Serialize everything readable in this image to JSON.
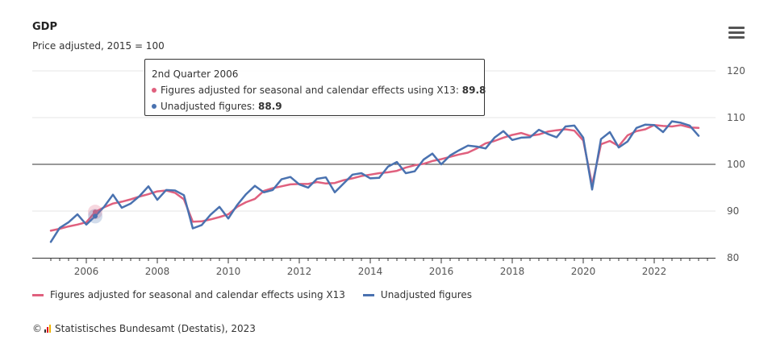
{
  "header": {
    "title": "GDP",
    "subtitle": "Price adjusted, 2015 = 100",
    "menu_icon": "hamburger-menu-icon"
  },
  "tooltip": {
    "heading": "2nd Quarter 2006",
    "adjusted_label": "Figures adjusted for seasonal and calendar effects using X13",
    "adjusted_value": "89.8",
    "unadjusted_label": "Unadjusted figures",
    "unadjusted_value": "88.9"
  },
  "legend": {
    "adjusted": "Figures adjusted for seasonal and calendar effects using X13",
    "unadjusted": "Unadjusted figures"
  },
  "credits": {
    "copyright": "©",
    "text": "Statistisches Bundesamt (Destatis), 2023",
    "logo_icon": "destatis-logo-icon"
  },
  "colors": {
    "adjusted": "#e0607e",
    "unadjusted": "#4a72b0",
    "grid": "#e6e6e6",
    "reference_line": "#333333"
  },
  "chart_data": {
    "type": "line",
    "title": "GDP",
    "subtitle": "Price adjusted, 2015 = 100",
    "y_axis_position": "right",
    "ylim": [
      80,
      120
    ],
    "yticks": [
      80,
      90,
      100,
      110,
      120
    ],
    "xlim": [
      2005.0,
      2023.75
    ],
    "xticks": [
      2006,
      2008,
      2010,
      2012,
      2014,
      2016,
      2018,
      2020,
      2022
    ],
    "reference_line": 100,
    "grid": true,
    "legend_position": "bottom",
    "highlight_x": 2006.25,
    "x": [
      2005.0,
      2005.25,
      2005.5,
      2005.75,
      2006.0,
      2006.25,
      2006.5,
      2006.75,
      2007.0,
      2007.25,
      2007.5,
      2007.75,
      2008.0,
      2008.25,
      2008.5,
      2008.75,
      2009.0,
      2009.25,
      2009.5,
      2009.75,
      2010.0,
      2010.25,
      2010.5,
      2010.75,
      2011.0,
      2011.25,
      2011.5,
      2011.75,
      2012.0,
      2012.25,
      2012.5,
      2012.75,
      2013.0,
      2013.25,
      2013.5,
      2013.75,
      2014.0,
      2014.25,
      2014.5,
      2014.75,
      2015.0,
      2015.25,
      2015.5,
      2015.75,
      2016.0,
      2016.25,
      2016.5,
      2016.75,
      2017.0,
      2017.25,
      2017.5,
      2017.75,
      2018.0,
      2018.25,
      2018.5,
      2018.75,
      2019.0,
      2019.25,
      2019.5,
      2019.75,
      2020.0,
      2020.25,
      2020.5,
      2020.75,
      2021.0,
      2021.25,
      2021.5,
      2021.75,
      2022.0,
      2022.25,
      2022.5,
      2022.75,
      2023.0,
      2023.25
    ],
    "series": [
      {
        "name": "Figures adjusted for seasonal and calendar effects using X13",
        "values": [
          85.8,
          86.2,
          86.7,
          87.1,
          87.6,
          89.8,
          90.8,
          91.6,
          92.0,
          92.5,
          93.1,
          93.6,
          94.2,
          94.4,
          93.9,
          92.5,
          87.7,
          87.8,
          88.2,
          88.7,
          89.3,
          90.9,
          91.9,
          92.6,
          94.3,
          94.9,
          95.3,
          95.7,
          95.8,
          95.8,
          96.2,
          95.9,
          96.0,
          96.6,
          97.0,
          97.5,
          97.8,
          98.1,
          98.3,
          98.6,
          99.3,
          99.8,
          100.1,
          100.7,
          101.1,
          101.6,
          102.1,
          102.5,
          103.4,
          104.5,
          105.0,
          105.7,
          106.3,
          106.7,
          106.1,
          106.4,
          107.0,
          107.3,
          107.5,
          107.2,
          105.1,
          95.6,
          104.3,
          105.0,
          103.9,
          106.2,
          107.1,
          107.5,
          108.4,
          108.2,
          108.1,
          108.4,
          107.9,
          107.8
        ]
      },
      {
        "name": "Unadjusted figures",
        "values": [
          83.4,
          86.4,
          87.6,
          89.3,
          87.1,
          88.9,
          90.9,
          93.5,
          90.7,
          91.6,
          93.2,
          95.3,
          92.4,
          94.5,
          94.4,
          93.4,
          86.3,
          87.0,
          89.2,
          90.9,
          88.4,
          91.3,
          93.6,
          95.4,
          94.0,
          94.5,
          96.8,
          97.3,
          95.7,
          95.0,
          96.9,
          97.2,
          94.0,
          95.9,
          97.8,
          98.1,
          97.0,
          97.1,
          99.5,
          100.5,
          98.1,
          98.5,
          101.0,
          102.3,
          100.0,
          101.9,
          103.0,
          104.0,
          103.8,
          103.4,
          105.7,
          107.1,
          105.2,
          105.7,
          105.8,
          107.4,
          106.5,
          105.8,
          108.1,
          108.3,
          105.7,
          94.6,
          105.4,
          106.9,
          103.6,
          104.9,
          107.8,
          108.5,
          108.4,
          106.9,
          109.2,
          108.9,
          108.3,
          106.1
        ]
      }
    ]
  }
}
